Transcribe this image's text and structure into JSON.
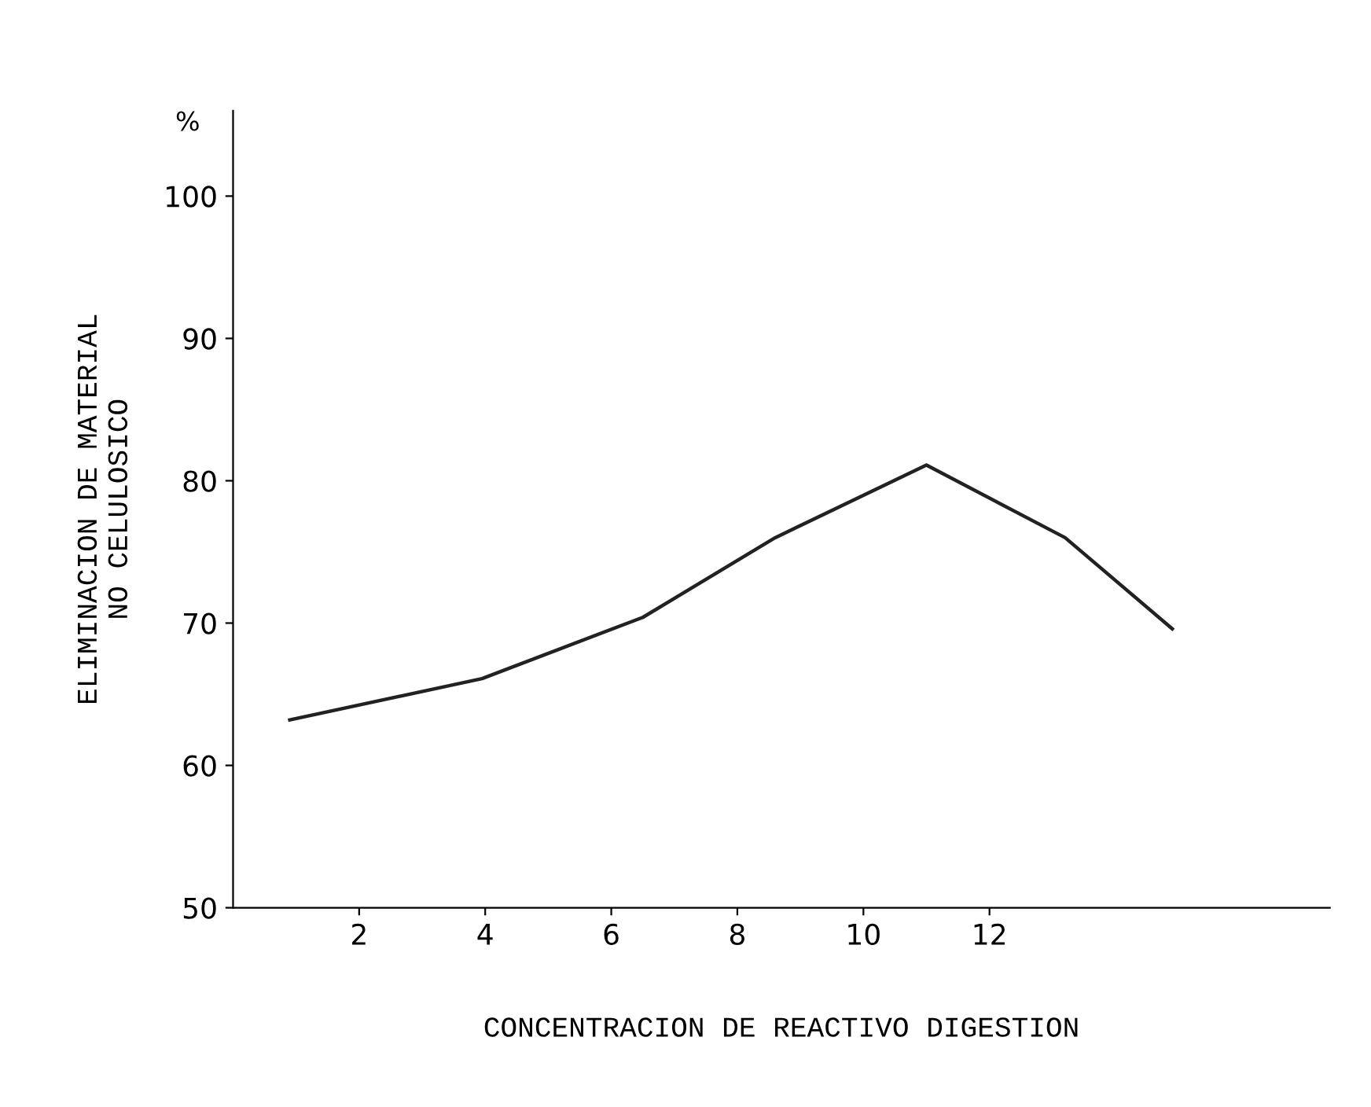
{
  "chart_data": {
    "type": "line",
    "xlabel": "CONCENTRACION DE REACTIVO DIGESTION",
    "ylabel": "ELIMINACION DE MATERIAL\nNO CELULOSICO",
    "annotations": [
      "%"
    ],
    "series": [
      {
        "color": "#222222",
        "x": [
          0.9,
          3.95,
          6.5,
          8.6,
          11.0,
          13.2,
          14.9
        ],
        "values": [
          63.2,
          66.1,
          70.4,
          76.0,
          81.1,
          76.0,
          69.6
        ]
      }
    ],
    "xlim": [
      0,
      17.4
    ],
    "ylim": [
      50,
      106
    ],
    "xticks": [
      2,
      4,
      6,
      8,
      10,
      12
    ],
    "yticks": [
      50,
      60,
      70,
      80,
      90,
      100
    ],
    "grid": false,
    "legend": false,
    "marker": "none",
    "line_style": "solid"
  }
}
